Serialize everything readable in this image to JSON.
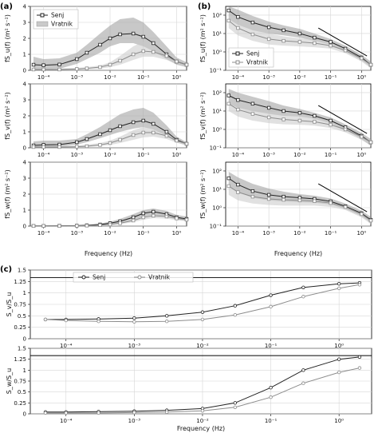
{
  "figure": {
    "panel_labels": [
      "(a)",
      "(b)",
      "(c)"
    ],
    "x_label": "Frequency (Hz)",
    "legend_a": [
      "Senj",
      "Vratnik"
    ],
    "legend_b": [
      "Senj",
      "Vratnik"
    ],
    "legend_c": [
      "Senj",
      "Vratnik"
    ]
  },
  "chart_data": [
    {
      "id": "a1",
      "type": "line",
      "xscale": "log",
      "xlim": [
        4e-05,
        2
      ],
      "ylim": [
        0,
        4
      ],
      "ylabel": "fS_u(f) (m² s⁻²)",
      "yticks": [
        0,
        1,
        2,
        3,
        4
      ],
      "series": [
        {
          "name": "Senj",
          "color": "#222222",
          "marker": "square",
          "x": [
            5e-05,
            0.0001,
            0.0003,
            0.001,
            0.002,
            0.005,
            0.01,
            0.02,
            0.05,
            0.1,
            0.2,
            0.5,
            1,
            2
          ],
          "y": [
            0.35,
            0.32,
            0.36,
            0.7,
            1.1,
            1.6,
            2.0,
            2.25,
            2.3,
            2.1,
            1.7,
            1.0,
            0.55,
            0.35
          ],
          "band_low": [
            0.05,
            0.05,
            0.1,
            0.4,
            0.7,
            1.1,
            1.5,
            1.7,
            1.7,
            1.5,
            1.2,
            0.7,
            0.35,
            0.2
          ],
          "band_high": [
            0.85,
            0.7,
            0.75,
            1.1,
            1.6,
            2.3,
            2.8,
            3.2,
            3.3,
            3.0,
            2.4,
            1.5,
            0.8,
            0.5
          ]
        },
        {
          "name": "Vratnik",
          "color": "#9a9a9a",
          "marker": "square",
          "x": [
            5e-05,
            0.0001,
            0.0003,
            0.001,
            0.002,
            0.005,
            0.01,
            0.02,
            0.05,
            0.1,
            0.2,
            0.5,
            1,
            2
          ],
          "y": [
            0.05,
            0.05,
            0.05,
            0.08,
            0.12,
            0.2,
            0.35,
            0.6,
            1.0,
            1.2,
            1.15,
            0.9,
            0.55,
            0.35
          ],
          "band_low": [
            0.02,
            0.02,
            0.02,
            0.04,
            0.06,
            0.1,
            0.2,
            0.35,
            0.65,
            0.85,
            0.85,
            0.65,
            0.4,
            0.25
          ],
          "band_high": [
            0.12,
            0.12,
            0.12,
            0.15,
            0.2,
            0.3,
            0.5,
            0.9,
            1.5,
            1.8,
            1.6,
            1.2,
            0.75,
            0.5
          ]
        }
      ]
    },
    {
      "id": "a2",
      "type": "line",
      "xscale": "log",
      "xlim": [
        4e-05,
        2
      ],
      "ylim": [
        0,
        4
      ],
      "ylabel": "fS_v(f) (m² s⁻²)",
      "yticks": [
        0,
        1,
        2,
        3,
        4
      ],
      "series": [
        {
          "name": "Senj",
          "x": [
            5e-05,
            0.0001,
            0.0003,
            0.001,
            0.002,
            0.005,
            0.01,
            0.02,
            0.05,
            0.1,
            0.2,
            0.5,
            1,
            2
          ],
          "y": [
            0.15,
            0.18,
            0.2,
            0.35,
            0.55,
            0.85,
            1.1,
            1.35,
            1.6,
            1.7,
            1.5,
            1.0,
            0.5,
            0.25
          ],
          "band_low": [
            0.05,
            0.05,
            0.08,
            0.2,
            0.35,
            0.6,
            0.8,
            1.0,
            1.2,
            1.3,
            1.15,
            0.75,
            0.35,
            0.15
          ],
          "band_high": [
            0.4,
            0.45,
            0.45,
            0.55,
            0.85,
            1.3,
            1.7,
            2.1,
            2.4,
            2.5,
            2.2,
            1.4,
            0.7,
            0.35
          ]
        },
        {
          "name": "Vratnik",
          "x": [
            5e-05,
            0.0001,
            0.0003,
            0.001,
            0.002,
            0.005,
            0.01,
            0.02,
            0.05,
            0.1,
            0.2,
            0.5,
            1,
            2
          ],
          "y": [
            0.05,
            0.05,
            0.05,
            0.07,
            0.1,
            0.18,
            0.3,
            0.5,
            0.8,
            0.95,
            0.95,
            0.75,
            0.45,
            0.25
          ],
          "band_low": [
            0.02,
            0.02,
            0.02,
            0.03,
            0.05,
            0.1,
            0.18,
            0.3,
            0.5,
            0.65,
            0.7,
            0.55,
            0.32,
            0.15
          ],
          "band_high": [
            0.12,
            0.12,
            0.12,
            0.14,
            0.2,
            0.3,
            0.45,
            0.7,
            1.1,
            1.3,
            1.25,
            0.95,
            0.6,
            0.35
          ]
        }
      ]
    },
    {
      "id": "a3",
      "type": "line",
      "xscale": "log",
      "xlim": [
        4e-05,
        2
      ],
      "ylim": [
        0,
        4
      ],
      "ylabel": "fS_w(f) (m² s⁻²)",
      "yticks": [
        0,
        1,
        2,
        3,
        4
      ],
      "series": [
        {
          "name": "Senj",
          "x": [
            5e-05,
            0.0001,
            0.0003,
            0.001,
            0.002,
            0.005,
            0.01,
            0.02,
            0.05,
            0.1,
            0.2,
            0.5,
            1,
            2
          ],
          "y": [
            0.01,
            0.01,
            0.02,
            0.03,
            0.05,
            0.1,
            0.18,
            0.3,
            0.55,
            0.8,
            0.9,
            0.75,
            0.55,
            0.45
          ],
          "band_low": [
            0.0,
            0.0,
            0.01,
            0.02,
            0.03,
            0.06,
            0.12,
            0.2,
            0.4,
            0.6,
            0.7,
            0.6,
            0.42,
            0.33
          ],
          "band_high": [
            0.03,
            0.03,
            0.04,
            0.06,
            0.09,
            0.16,
            0.27,
            0.45,
            0.75,
            1.0,
            1.1,
            0.95,
            0.7,
            0.6
          ]
        },
        {
          "name": "Vratnik",
          "x": [
            5e-05,
            0.0001,
            0.0003,
            0.001,
            0.002,
            0.005,
            0.01,
            0.02,
            0.05,
            0.1,
            0.2,
            0.5,
            1,
            2
          ],
          "y": [
            0.01,
            0.01,
            0.01,
            0.02,
            0.03,
            0.06,
            0.1,
            0.18,
            0.35,
            0.55,
            0.65,
            0.6,
            0.48,
            0.4
          ],
          "band_low": [
            0.0,
            0.0,
            0.0,
            0.01,
            0.02,
            0.04,
            0.07,
            0.12,
            0.25,
            0.4,
            0.5,
            0.47,
            0.37,
            0.3
          ],
          "band_high": [
            0.02,
            0.02,
            0.02,
            0.03,
            0.05,
            0.09,
            0.15,
            0.25,
            0.45,
            0.7,
            0.8,
            0.75,
            0.6,
            0.52
          ]
        }
      ]
    },
    {
      "id": "b1",
      "type": "line",
      "xscale": "log",
      "yscale": "log",
      "xlim": [
        4e-05,
        2
      ],
      "ylim": [
        0.1,
        300
      ],
      "ylabel": "fS_u(f) (m² s⁻²)",
      "yticks": [
        0.1,
        1,
        10,
        100
      ],
      "reference_line": {
        "x": [
          0.04,
          1.5
        ],
        "y": [
          20,
          0.6
        ]
      },
      "series": [
        {
          "name": "Senj",
          "x": [
            5e-05,
            0.0001,
            0.0003,
            0.001,
            0.003,
            0.01,
            0.03,
            0.1,
            0.3,
            1,
            2
          ],
          "y": [
            180,
            80,
            40,
            22,
            15,
            10,
            6,
            3.5,
            1.5,
            0.5,
            0.2
          ],
          "band_low": [
            60,
            30,
            15,
            10,
            8,
            6,
            4,
            2.5,
            1.0,
            0.35,
            0.15
          ],
          "band_high": [
            300,
            200,
            90,
            45,
            28,
            18,
            10,
            5,
            2.2,
            0.7,
            0.3
          ]
        },
        {
          "name": "Vratnik",
          "x": [
            5e-05,
            0.0001,
            0.0003,
            0.001,
            0.003,
            0.01,
            0.03,
            0.1,
            0.3,
            1,
            2
          ],
          "y": [
            50,
            20,
            9,
            5,
            4,
            3.5,
            3,
            2.2,
            1.2,
            0.45,
            0.2
          ],
          "band_low": [
            20,
            8,
            4,
            2.5,
            2.2,
            2.0,
            1.8,
            1.5,
            0.85,
            0.3,
            0.13
          ],
          "band_high": [
            100,
            45,
            20,
            10,
            7,
            5.5,
            4.5,
            3.2,
            1.6,
            0.6,
            0.27
          ]
        }
      ]
    },
    {
      "id": "b2",
      "type": "line",
      "xscale": "log",
      "yscale": "log",
      "xlim": [
        4e-05,
        2
      ],
      "ylim": [
        0.1,
        300
      ],
      "ylabel": "fS_v(f) (m² s⁻²)",
      "yticks": [
        0.1,
        1,
        10,
        100
      ],
      "reference_line": {
        "x": [
          0.04,
          1.5
        ],
        "y": [
          20,
          0.6
        ]
      },
      "series": [
        {
          "name": "Senj",
          "x": [
            5e-05,
            0.0001,
            0.0003,
            0.001,
            0.003,
            0.01,
            0.03,
            0.1,
            0.3,
            1,
            2
          ],
          "y": [
            70,
            40,
            25,
            15,
            10,
            8,
            5.5,
            3,
            1.3,
            0.45,
            0.2
          ],
          "band_low": [
            25,
            15,
            10,
            7,
            5.5,
            5,
            3.8,
            2.2,
            0.9,
            0.3,
            0.13
          ],
          "band_high": [
            160,
            100,
            60,
            35,
            20,
            13,
            8,
            4.5,
            1.9,
            0.65,
            0.3
          ]
        },
        {
          "name": "Vratnik",
          "x": [
            5e-05,
            0.0001,
            0.0003,
            0.001,
            0.003,
            0.01,
            0.03,
            0.1,
            0.3,
            1,
            2
          ],
          "y": [
            25,
            12,
            7,
            4.5,
            3.5,
            3,
            2.6,
            1.8,
            1.0,
            0.4,
            0.2
          ],
          "band_low": [
            10,
            5,
            3,
            2.2,
            1.9,
            1.8,
            1.6,
            1.2,
            0.7,
            0.27,
            0.13
          ],
          "band_high": [
            60,
            30,
            16,
            10,
            6.5,
            5,
            3.8,
            2.6,
            1.4,
            0.55,
            0.28
          ]
        }
      ]
    },
    {
      "id": "b3",
      "type": "line",
      "xscale": "log",
      "yscale": "log",
      "xlim": [
        4e-05,
        2
      ],
      "ylim": [
        0.1,
        300
      ],
      "ylabel": "fS_w(f) (m² s⁻²)",
      "yticks": [
        0.1,
        1,
        10,
        100
      ],
      "reference_line": {
        "x": [
          0.04,
          1.5
        ],
        "y": [
          20,
          0.6
        ]
      },
      "series": [
        {
          "name": "Senj",
          "x": [
            5e-05,
            0.0001,
            0.0003,
            0.001,
            0.003,
            0.01,
            0.03,
            0.1,
            0.3,
            1,
            2
          ],
          "y": [
            40,
            18,
            8,
            5,
            4,
            3.5,
            3,
            2.2,
            1.2,
            0.5,
            0.22
          ],
          "band_low": [
            15,
            7,
            3.5,
            2.5,
            2.2,
            2,
            1.9,
            1.5,
            0.85,
            0.35,
            0.15
          ],
          "band_high": [
            90,
            45,
            20,
            11,
            7.5,
            5.5,
            4.5,
            3.2,
            1.7,
            0.7,
            0.32
          ]
        },
        {
          "name": "Vratnik",
          "x": [
            5e-05,
            0.0001,
            0.0003,
            0.001,
            0.003,
            0.01,
            0.03,
            0.1,
            0.3,
            1,
            2
          ],
          "y": [
            15,
            7,
            4,
            3,
            2.7,
            2.5,
            2.3,
            1.8,
            1.1,
            0.45,
            0.2
          ],
          "band_low": [
            5,
            2.5,
            1.7,
            1.4,
            1.3,
            1.3,
            1.3,
            1.1,
            0.75,
            0.3,
            0.13
          ],
          "band_high": [
            40,
            20,
            9,
            6,
            5,
            4.2,
            3.6,
            2.7,
            1.5,
            0.6,
            0.28
          ]
        }
      ]
    },
    {
      "id": "c1",
      "type": "line",
      "xscale": "log",
      "xlim": [
        3e-05,
        3
      ],
      "ylim": [
        0,
        1.5
      ],
      "ylabel": "S_v/S_u",
      "yticks": [
        0,
        0.25,
        0.5,
        0.75,
        1,
        1.25,
        1.5
      ],
      "hline": 1.333,
      "series": [
        {
          "name": "Senj",
          "marker": "circle",
          "x": [
            5e-05,
            0.0001,
            0.0003,
            0.001,
            0.003,
            0.01,
            0.03,
            0.1,
            0.3,
            1,
            2
          ],
          "y": [
            0.42,
            0.42,
            0.43,
            0.45,
            0.5,
            0.58,
            0.72,
            0.95,
            1.12,
            1.2,
            1.22
          ]
        },
        {
          "name": "Vratnik",
          "marker": "circle",
          "x": [
            5e-05,
            0.0001,
            0.0003,
            0.001,
            0.003,
            0.01,
            0.03,
            0.1,
            0.3,
            1,
            2
          ],
          "y": [
            0.42,
            0.4,
            0.38,
            0.37,
            0.38,
            0.42,
            0.52,
            0.7,
            0.92,
            1.1,
            1.18
          ]
        }
      ]
    },
    {
      "id": "c2",
      "type": "line",
      "xscale": "log",
      "xlim": [
        3e-05,
        3
      ],
      "ylim": [
        0,
        1.5
      ],
      "ylabel": "S_w/S_u",
      "yticks": [
        0,
        0.25,
        0.5,
        0.75,
        1,
        1.25,
        1.5
      ],
      "hline": 1.333,
      "series": [
        {
          "name": "Senj",
          "marker": "circle",
          "x": [
            5e-05,
            0.0001,
            0.0003,
            0.001,
            0.003,
            0.01,
            0.03,
            0.1,
            0.3,
            1,
            2
          ],
          "y": [
            0.04,
            0.04,
            0.05,
            0.06,
            0.08,
            0.12,
            0.25,
            0.6,
            1.0,
            1.25,
            1.3
          ]
        },
        {
          "name": "Vratnik",
          "marker": "circle",
          "x": [
            5e-05,
            0.0001,
            0.0003,
            0.001,
            0.003,
            0.01,
            0.03,
            0.1,
            0.3,
            1,
            2
          ],
          "y": [
            0.02,
            0.02,
            0.02,
            0.03,
            0.04,
            0.07,
            0.15,
            0.38,
            0.7,
            0.95,
            1.05
          ]
        }
      ]
    }
  ]
}
